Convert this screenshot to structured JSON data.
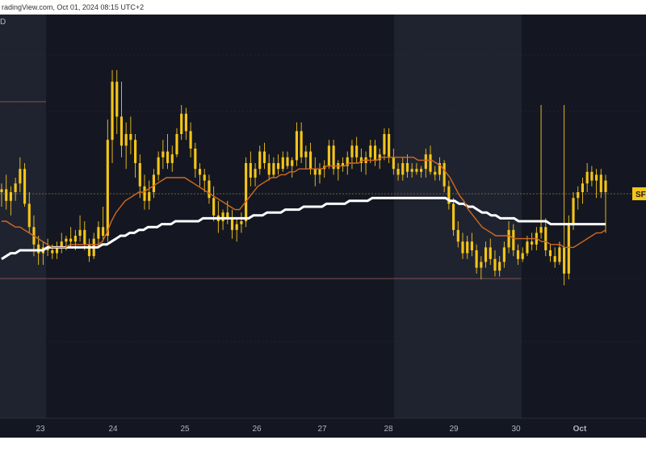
{
  "header": {
    "source_text": "radingView.com, Oct 01, 2024 08:15 UTC+2",
    "corner_mark": "D"
  },
  "colors": {
    "background": "#141722",
    "session_band": "#1f2330",
    "candle": "#f5c518",
    "ma_fast": "#d2691e",
    "ma_slow": "#ffffff",
    "level_line": "#c9a227",
    "axis_text": "#b2b5be"
  },
  "chart_data": {
    "type": "candlestick",
    "title": "",
    "xlabel": "",
    "ylabel": "",
    "x_tick_labels": [
      "23",
      "24",
      "25",
      "26",
      "27",
      "28",
      "29",
      "30",
      "Oct"
    ],
    "price_tag": "SF",
    "grid": true,
    "price_level": 0.56,
    "ohlc": [
      [
        0.5,
        0.53,
        0.45,
        0.51
      ],
      [
        0.51,
        0.56,
        0.44,
        0.47
      ],
      [
        0.47,
        0.52,
        0.42,
        0.5
      ],
      [
        0.5,
        0.55,
        0.47,
        0.53
      ],
      [
        0.53,
        0.62,
        0.5,
        0.58
      ],
      [
        0.58,
        0.6,
        0.45,
        0.46
      ],
      [
        0.46,
        0.5,
        0.36,
        0.38
      ],
      [
        0.38,
        0.42,
        0.28,
        0.32
      ],
      [
        0.32,
        0.35,
        0.25,
        0.29
      ],
      [
        0.29,
        0.33,
        0.25,
        0.31
      ],
      [
        0.31,
        0.34,
        0.28,
        0.3
      ],
      [
        0.3,
        0.32,
        0.27,
        0.29
      ],
      [
        0.29,
        0.33,
        0.27,
        0.31
      ],
      [
        0.31,
        0.36,
        0.29,
        0.33
      ],
      [
        0.33,
        0.35,
        0.3,
        0.34
      ],
      [
        0.34,
        0.38,
        0.31,
        0.33
      ],
      [
        0.33,
        0.37,
        0.3,
        0.35
      ],
      [
        0.35,
        0.42,
        0.33,
        0.37
      ],
      [
        0.37,
        0.4,
        0.3,
        0.32
      ],
      [
        0.32,
        0.34,
        0.26,
        0.28
      ],
      [
        0.28,
        0.36,
        0.27,
        0.34
      ],
      [
        0.34,
        0.4,
        0.31,
        0.38
      ],
      [
        0.38,
        0.45,
        0.33,
        0.35
      ],
      [
        0.35,
        0.75,
        0.33,
        0.68
      ],
      [
        0.68,
        0.92,
        0.6,
        0.88
      ],
      [
        0.88,
        0.92,
        0.7,
        0.76
      ],
      [
        0.76,
        0.88,
        0.62,
        0.66
      ],
      [
        0.66,
        0.74,
        0.58,
        0.7
      ],
      [
        0.7,
        0.76,
        0.63,
        0.68
      ],
      [
        0.68,
        0.7,
        0.55,
        0.6
      ],
      [
        0.6,
        0.63,
        0.48,
        0.52
      ],
      [
        0.52,
        0.56,
        0.44,
        0.47
      ],
      [
        0.47,
        0.54,
        0.44,
        0.5
      ],
      [
        0.5,
        0.58,
        0.48,
        0.56
      ],
      [
        0.56,
        0.64,
        0.54,
        0.62
      ],
      [
        0.62,
        0.68,
        0.58,
        0.64
      ],
      [
        0.64,
        0.7,
        0.58,
        0.6
      ],
      [
        0.6,
        0.66,
        0.57,
        0.63
      ],
      [
        0.63,
        0.72,
        0.62,
        0.7
      ],
      [
        0.7,
        0.8,
        0.68,
        0.77
      ],
      [
        0.77,
        0.79,
        0.68,
        0.71
      ],
      [
        0.71,
        0.74,
        0.62,
        0.65
      ],
      [
        0.65,
        0.67,
        0.55,
        0.58
      ],
      [
        0.58,
        0.6,
        0.52,
        0.56
      ],
      [
        0.56,
        0.58,
        0.5,
        0.54
      ],
      [
        0.54,
        0.56,
        0.46,
        0.48
      ],
      [
        0.48,
        0.52,
        0.4,
        0.42
      ],
      [
        0.42,
        0.47,
        0.36,
        0.4
      ],
      [
        0.4,
        0.44,
        0.37,
        0.43
      ],
      [
        0.43,
        0.47,
        0.39,
        0.41
      ],
      [
        0.41,
        0.44,
        0.34,
        0.37
      ],
      [
        0.37,
        0.41,
        0.33,
        0.39
      ],
      [
        0.39,
        0.43,
        0.36,
        0.4
      ],
      [
        0.4,
        0.62,
        0.38,
        0.6
      ],
      [
        0.6,
        0.64,
        0.52,
        0.55
      ],
      [
        0.55,
        0.6,
        0.52,
        0.58
      ],
      [
        0.58,
        0.66,
        0.56,
        0.64
      ],
      [
        0.64,
        0.67,
        0.58,
        0.6
      ],
      [
        0.6,
        0.63,
        0.54,
        0.56
      ],
      [
        0.56,
        0.62,
        0.55,
        0.6
      ],
      [
        0.6,
        0.63,
        0.56,
        0.58
      ],
      [
        0.58,
        0.64,
        0.57,
        0.62
      ],
      [
        0.62,
        0.64,
        0.58,
        0.59
      ],
      [
        0.59,
        0.62,
        0.55,
        0.61
      ],
      [
        0.61,
        0.74,
        0.59,
        0.71
      ],
      [
        0.71,
        0.74,
        0.6,
        0.62
      ],
      [
        0.62,
        0.66,
        0.58,
        0.64
      ],
      [
        0.64,
        0.67,
        0.56,
        0.58
      ],
      [
        0.58,
        0.62,
        0.52,
        0.56
      ],
      [
        0.56,
        0.6,
        0.53,
        0.58
      ],
      [
        0.58,
        0.61,
        0.55,
        0.59
      ],
      [
        0.59,
        0.68,
        0.58,
        0.66
      ],
      [
        0.66,
        0.68,
        0.56,
        0.58
      ],
      [
        0.58,
        0.61,
        0.54,
        0.6
      ],
      [
        0.6,
        0.62,
        0.57,
        0.59
      ],
      [
        0.59,
        0.64,
        0.56,
        0.62
      ],
      [
        0.62,
        0.68,
        0.58,
        0.66
      ],
      [
        0.66,
        0.69,
        0.6,
        0.62
      ],
      [
        0.62,
        0.65,
        0.57,
        0.6
      ],
      [
        0.6,
        0.64,
        0.56,
        0.62
      ],
      [
        0.62,
        0.68,
        0.6,
        0.66
      ],
      [
        0.66,
        0.68,
        0.59,
        0.61
      ],
      [
        0.61,
        0.65,
        0.58,
        0.63
      ],
      [
        0.63,
        0.72,
        0.61,
        0.7
      ],
      [
        0.7,
        0.72,
        0.6,
        0.62
      ],
      [
        0.62,
        0.65,
        0.56,
        0.58
      ],
      [
        0.58,
        0.6,
        0.54,
        0.56
      ],
      [
        0.56,
        0.62,
        0.54,
        0.6
      ],
      [
        0.6,
        0.63,
        0.55,
        0.57
      ],
      [
        0.57,
        0.6,
        0.55,
        0.58
      ],
      [
        0.58,
        0.6,
        0.56,
        0.57
      ],
      [
        0.57,
        0.59,
        0.55,
        0.58
      ],
      [
        0.58,
        0.65,
        0.55,
        0.63
      ],
      [
        0.63,
        0.66,
        0.56,
        0.57
      ],
      [
        0.57,
        0.59,
        0.54,
        0.56
      ],
      [
        0.56,
        0.62,
        0.54,
        0.6
      ],
      [
        0.6,
        0.61,
        0.5,
        0.52
      ],
      [
        0.52,
        0.54,
        0.44,
        0.46
      ],
      [
        0.46,
        0.48,
        0.35,
        0.37
      ],
      [
        0.37,
        0.4,
        0.31,
        0.33
      ],
      [
        0.33,
        0.36,
        0.27,
        0.29
      ],
      [
        0.29,
        0.35,
        0.27,
        0.33
      ],
      [
        0.33,
        0.36,
        0.28,
        0.3
      ],
      [
        0.3,
        0.32,
        0.22,
        0.24
      ],
      [
        0.24,
        0.28,
        0.2,
        0.26
      ],
      [
        0.26,
        0.33,
        0.24,
        0.31
      ],
      [
        0.31,
        0.34,
        0.25,
        0.27
      ],
      [
        0.27,
        0.3,
        0.21,
        0.23
      ],
      [
        0.23,
        0.28,
        0.21,
        0.26
      ],
      [
        0.26,
        0.33,
        0.24,
        0.31
      ],
      [
        0.31,
        0.4,
        0.29,
        0.37
      ],
      [
        0.37,
        0.39,
        0.28,
        0.3
      ],
      [
        0.3,
        0.32,
        0.25,
        0.27
      ],
      [
        0.27,
        0.31,
        0.26,
        0.29
      ],
      [
        0.29,
        0.35,
        0.28,
        0.33
      ],
      [
        0.33,
        0.36,
        0.3,
        0.32
      ],
      [
        0.32,
        0.38,
        0.3,
        0.36
      ],
      [
        0.36,
        0.8,
        0.34,
        0.38
      ],
      [
        0.38,
        0.41,
        0.28,
        0.3
      ],
      [
        0.3,
        0.32,
        0.26,
        0.28
      ],
      [
        0.28,
        0.31,
        0.24,
        0.26
      ],
      [
        0.26,
        0.33,
        0.25,
        0.31
      ],
      [
        0.31,
        0.8,
        0.18,
        0.22
      ],
      [
        0.22,
        0.42,
        0.2,
        0.39
      ],
      [
        0.39,
        0.5,
        0.37,
        0.48
      ],
      [
        0.48,
        0.52,
        0.44,
        0.5
      ],
      [
        0.5,
        0.55,
        0.46,
        0.53
      ],
      [
        0.53,
        0.6,
        0.5,
        0.57
      ],
      [
        0.57,
        0.59,
        0.52,
        0.54
      ],
      [
        0.54,
        0.58,
        0.48,
        0.56
      ],
      [
        0.56,
        0.58,
        0.48,
        0.5
      ],
      [
        0.5,
        0.56,
        0.36,
        0.54
      ]
    ],
    "series": [
      {
        "values": [
          0.4,
          0.4,
          0.39,
          0.38,
          0.38,
          0.37,
          0.36,
          0.35,
          0.34,
          0.33,
          0.32,
          0.31,
          0.31,
          0.31,
          0.31,
          0.32,
          0.32,
          0.32,
          0.32,
          0.32,
          0.32,
          0.32,
          0.33,
          0.36,
          0.4,
          0.43,
          0.45,
          0.47,
          0.48,
          0.49,
          0.5,
          0.5,
          0.51,
          0.52,
          0.53,
          0.54,
          0.55,
          0.55,
          0.55,
          0.55,
          0.55,
          0.54,
          0.53,
          0.52,
          0.51,
          0.5,
          0.49,
          0.48,
          0.47,
          0.46,
          0.45,
          0.44,
          0.44,
          0.46,
          0.48,
          0.5,
          0.52,
          0.53,
          0.54,
          0.55,
          0.55,
          0.56,
          0.56,
          0.57,
          0.57,
          0.58,
          0.58,
          0.58,
          0.58,
          0.58,
          0.58,
          0.59,
          0.59,
          0.59,
          0.59,
          0.59,
          0.6,
          0.6,
          0.6,
          0.61,
          0.61,
          0.61,
          0.61,
          0.62,
          0.62,
          0.62,
          0.62,
          0.62,
          0.62,
          0.62,
          0.62,
          0.61,
          0.61,
          0.61,
          0.61,
          0.6,
          0.59,
          0.57,
          0.55,
          0.52,
          0.49,
          0.47,
          0.44,
          0.42,
          0.4,
          0.38,
          0.37,
          0.36,
          0.35,
          0.35,
          0.35,
          0.35,
          0.34,
          0.34,
          0.34,
          0.34,
          0.34,
          0.34,
          0.33,
          0.33,
          0.32,
          0.32,
          0.32,
          0.31,
          0.31,
          0.31,
          0.32,
          0.33,
          0.34,
          0.35,
          0.36,
          0.36,
          0.37
        ]
      },
      {
        "values": [
          0.27,
          0.28,
          0.29,
          0.29,
          0.3,
          0.3,
          0.3,
          0.3,
          0.3,
          0.3,
          0.31,
          0.31,
          0.31,
          0.31,
          0.31,
          0.31,
          0.31,
          0.31,
          0.31,
          0.31,
          0.31,
          0.31,
          0.32,
          0.32,
          0.33,
          0.34,
          0.35,
          0.35,
          0.36,
          0.36,
          0.37,
          0.37,
          0.38,
          0.38,
          0.38,
          0.39,
          0.39,
          0.39,
          0.4,
          0.4,
          0.4,
          0.4,
          0.4,
          0.4,
          0.41,
          0.41,
          0.41,
          0.41,
          0.41,
          0.41,
          0.41,
          0.41,
          0.41,
          0.41,
          0.41,
          0.42,
          0.42,
          0.42,
          0.43,
          0.43,
          0.43,
          0.43,
          0.44,
          0.44,
          0.44,
          0.44,
          0.45,
          0.45,
          0.45,
          0.45,
          0.45,
          0.46,
          0.46,
          0.46,
          0.46,
          0.46,
          0.47,
          0.47,
          0.47,
          0.47,
          0.47,
          0.48,
          0.48,
          0.48,
          0.48,
          0.48,
          0.48,
          0.48,
          0.48,
          0.48,
          0.48,
          0.48,
          0.48,
          0.48,
          0.48,
          0.48,
          0.48,
          0.48,
          0.47,
          0.47,
          0.46,
          0.46,
          0.45,
          0.45,
          0.44,
          0.43,
          0.43,
          0.42,
          0.42,
          0.41,
          0.41,
          0.41,
          0.41,
          0.4,
          0.4,
          0.4,
          0.4,
          0.4,
          0.4,
          0.4,
          0.39,
          0.39,
          0.39,
          0.39,
          0.39,
          0.39,
          0.39,
          0.39,
          0.39,
          0.39,
          0.39,
          0.39,
          0.39
        ]
      }
    ]
  }
}
